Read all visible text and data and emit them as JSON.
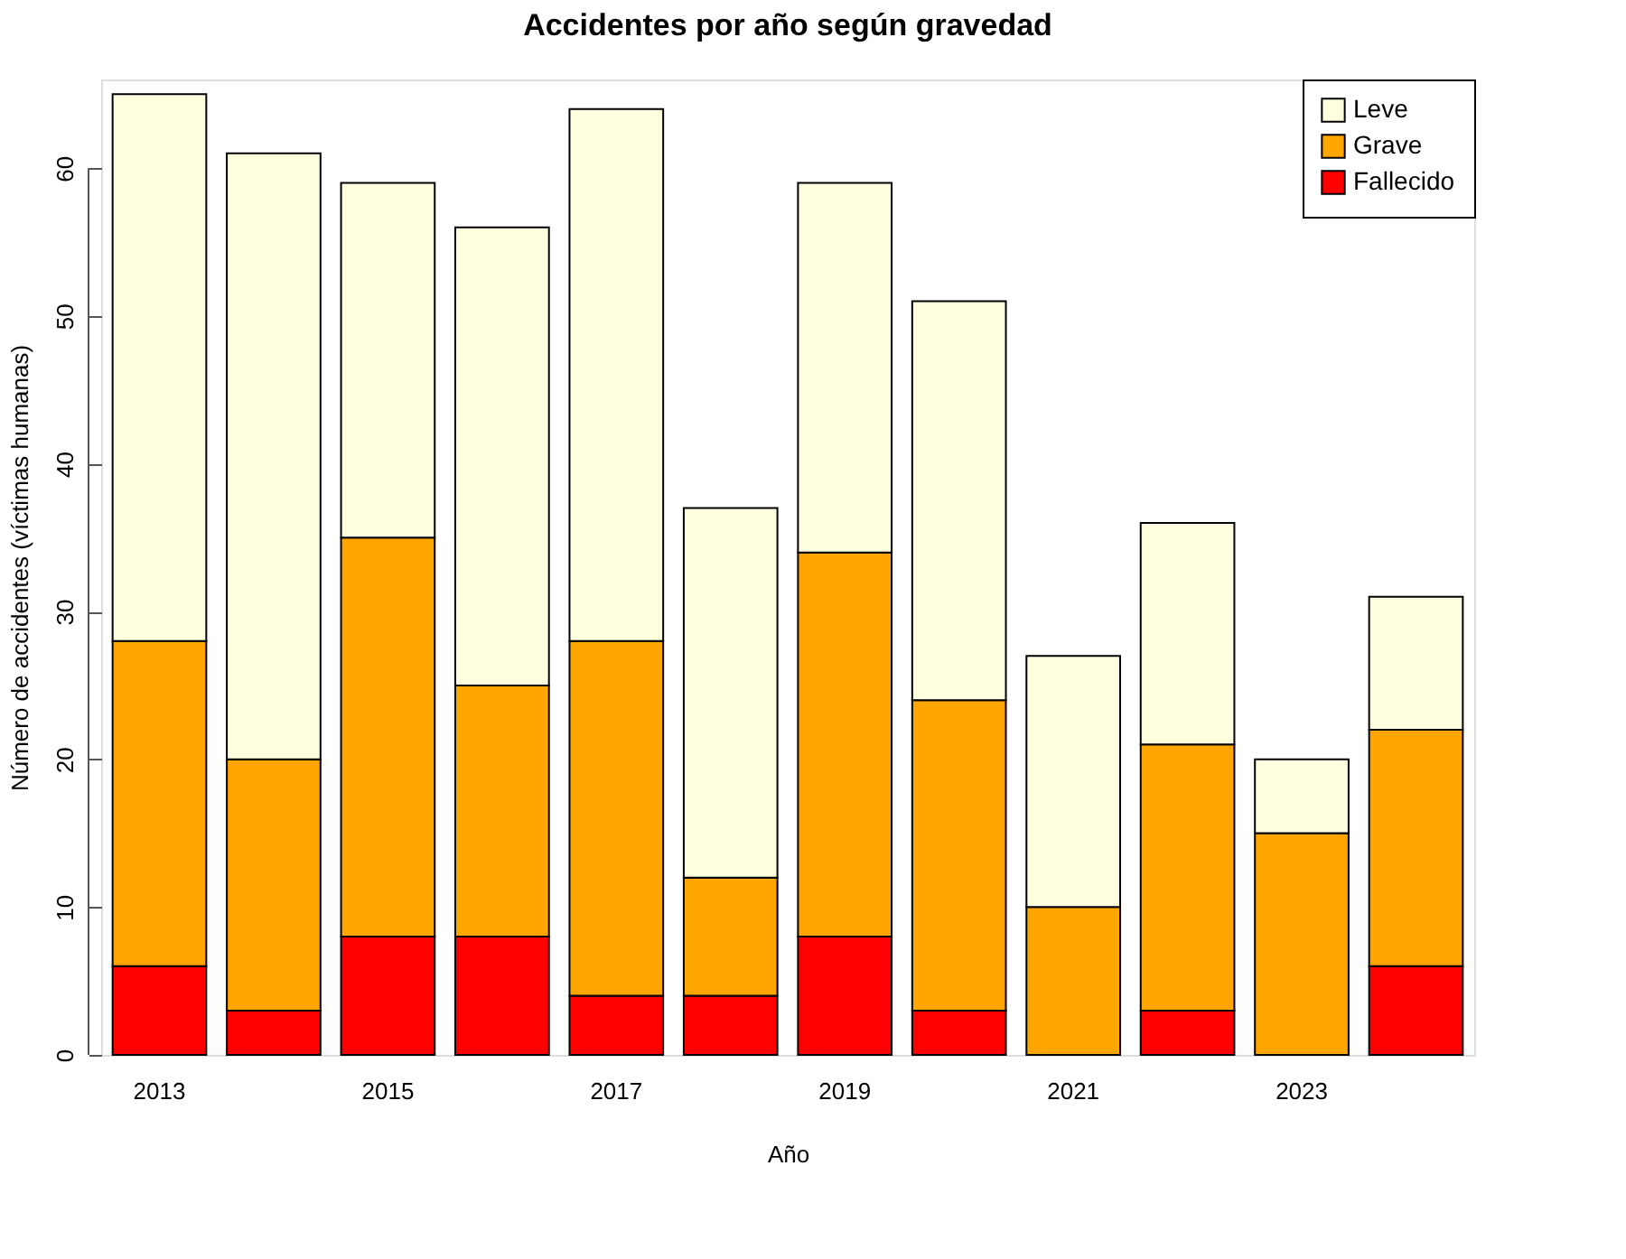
{
  "chart_data": {
    "type": "bar",
    "title": "Accidentes por año según gravedad",
    "xlabel": "Año",
    "ylabel": "Número de accidentes (víctimas humanas)",
    "categories": [
      "2013",
      null,
      "2015",
      null,
      "2017",
      null,
      "2019",
      null,
      "2021",
      null,
      "2023",
      null
    ],
    "stacked": true,
    "series": [
      {
        "name": "Fallecido",
        "color": "#ff0000",
        "values": [
          6,
          3,
          8,
          8,
          4,
          4,
          8,
          3,
          0,
          3,
          0,
          6
        ]
      },
      {
        "name": "Grave",
        "color": "#ffa500",
        "values": [
          22,
          17,
          27,
          17,
          24,
          8,
          26,
          21,
          10,
          18,
          15,
          16
        ]
      },
      {
        "name": "Leve",
        "color": "#ffffe0",
        "values": [
          37,
          41,
          24,
          31,
          36,
          25,
          25,
          27,
          17,
          15,
          5,
          9
        ]
      }
    ],
    "ylim": [
      0,
      66
    ],
    "yticks": [
      0,
      10,
      20,
      30,
      40,
      50,
      60
    ],
    "grid": false,
    "legend": "top right"
  }
}
